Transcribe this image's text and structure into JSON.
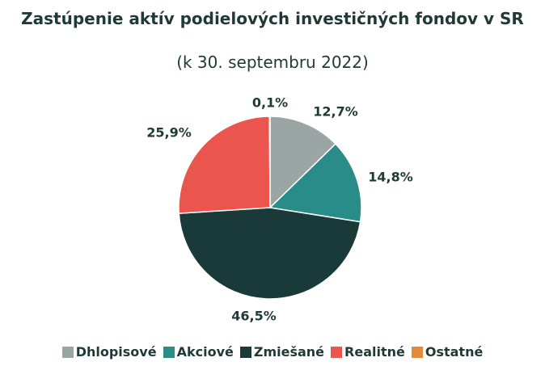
{
  "chart_data": {
    "type": "pie",
    "title": "Zastúpenie aktív podielových investičných fondov v SR",
    "subtitle": "(k 30. septembru 2022)",
    "categories": [
      "Dhlopisové",
      "Akciové",
      "Zmiešané",
      "Realitné",
      "Ostatné"
    ],
    "values": [
      12.7,
      14.8,
      46.5,
      25.9,
      0.1
    ],
    "labels": [
      "12,7%",
      "14,8%",
      "46,5%",
      "25,9%",
      "0,1%"
    ],
    "colors": [
      "#9aa5a4",
      "#2a8c89",
      "#1a3a39",
      "#ea554d",
      "#e8893a"
    ],
    "legend_position": "bottom"
  }
}
